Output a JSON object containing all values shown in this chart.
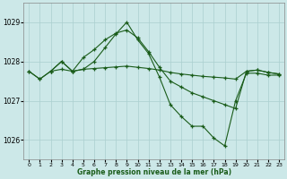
{
  "background_color": "#cce8e8",
  "grid_color": "#aacfcf",
  "line_color": "#1a5c1a",
  "xlabel": "Graphe pression niveau de la mer (hPa)",
  "xlim": [
    -0.5,
    23.5
  ],
  "ylim": [
    1025.5,
    1029.5
  ],
  "yticks": [
    1026,
    1027,
    1028,
    1029
  ],
  "xticks": [
    0,
    1,
    2,
    3,
    4,
    5,
    6,
    7,
    8,
    9,
    10,
    11,
    12,
    13,
    14,
    15,
    16,
    17,
    18,
    19,
    20,
    21,
    22,
    23
  ],
  "series": [
    {
      "x": [
        0,
        1,
        2,
        3,
        4,
        5,
        6,
        7,
        8,
        9,
        10,
        11,
        12,
        13,
        14,
        15,
        16,
        17,
        18,
        19,
        20,
        21,
        22,
        23
      ],
      "y": [
        1027.75,
        1027.55,
        1027.75,
        1027.8,
        1027.75,
        1027.8,
        1027.82,
        1027.84,
        1027.86,
        1027.88,
        1027.85,
        1027.82,
        1027.78,
        1027.72,
        1027.68,
        1027.65,
        1027.62,
        1027.6,
        1027.58,
        1027.55,
        1027.75,
        1027.78,
        1027.72,
        1027.68
      ]
    },
    {
      "x": [
        0,
        1,
        2,
        3,
        4,
        5,
        6,
        7,
        8,
        9,
        10,
        11,
        12,
        13,
        14,
        15,
        16,
        17,
        18,
        19,
        20,
        21,
        22,
        23
      ],
      "y": [
        1027.75,
        1027.55,
        1027.75,
        1028.0,
        1027.75,
        1027.8,
        1028.0,
        1028.35,
        1028.7,
        1029.0,
        1028.55,
        1028.2,
        1027.6,
        1026.9,
        1026.6,
        1026.35,
        1026.35,
        1026.05,
        1025.85,
        1027.0,
        1027.7,
        1027.7,
        1027.65,
        1027.65
      ]
    },
    {
      "x": [
        2,
        3,
        4,
        5,
        6,
        7,
        8,
        9,
        10,
        11,
        12,
        13,
        14,
        15,
        16,
        17,
        18,
        19,
        20,
        21,
        22,
        23
      ],
      "y": [
        1027.75,
        1028.0,
        1027.75,
        1028.1,
        1028.3,
        1028.55,
        1028.72,
        1028.8,
        1028.6,
        1028.25,
        1027.85,
        1027.5,
        1027.35,
        1027.2,
        1027.1,
        1027.0,
        1026.9,
        1026.8,
        1027.75,
        1027.78,
        1027.72,
        1027.68
      ]
    }
  ]
}
